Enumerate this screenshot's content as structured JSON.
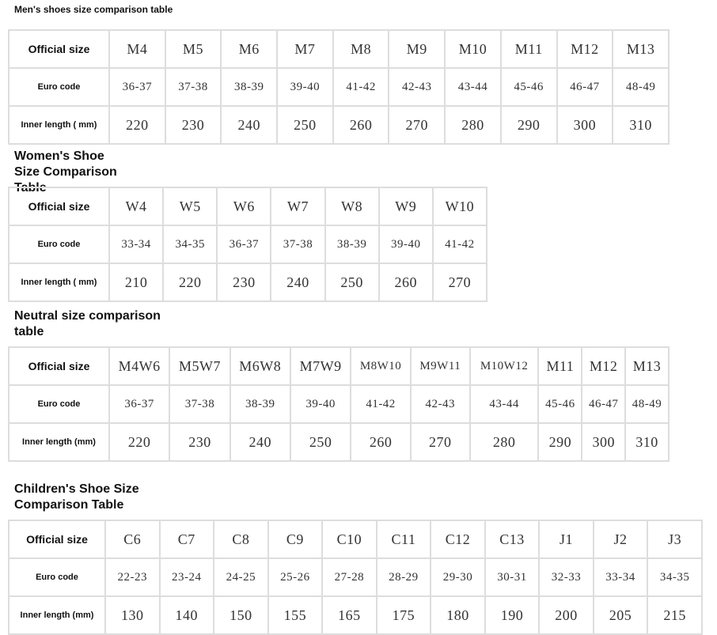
{
  "tables": [
    {
      "title": "Men's shoes size comparison table",
      "rows": [
        {
          "label": "Official size",
          "values": [
            "M4",
            "M5",
            "M6",
            "M7",
            "M8",
            "M9",
            "M10",
            "M11",
            "M12",
            "M13"
          ]
        },
        {
          "label": "Euro code",
          "values": [
            "36-37",
            "37-38",
            "38-39",
            "39-40",
            "41-42",
            "42-43",
            "43-44",
            "45-46",
            "46-47",
            "48-49"
          ]
        },
        {
          "label": "Inner length ( mm)",
          "values": [
            "220",
            "230",
            "240",
            "250",
            "260",
            "270",
            "280",
            "290",
            "300",
            "310"
          ]
        }
      ]
    },
    {
      "title": "Women's Shoe Size Comparison Table",
      "rows": [
        {
          "label": "Official size",
          "values": [
            "W4",
            "W5",
            "W6",
            "W7",
            "W8",
            "W9",
            "W10"
          ]
        },
        {
          "label": "Euro code",
          "values": [
            "33-34",
            "34-35",
            "36-37",
            "37-38",
            "38-39",
            "39-40",
            "41-42"
          ]
        },
        {
          "label": "Inner length ( mm)",
          "values": [
            "210",
            "220",
            "230",
            "240",
            "250",
            "260",
            "270"
          ]
        }
      ]
    },
    {
      "title": "Neutral size comparison table",
      "rows": [
        {
          "label": "Official size",
          "values": [
            "M4W6",
            "M5W7",
            "M6W8",
            "M7W9",
            "M8W10",
            "M9W11",
            "M10W12",
            "M11",
            "M12",
            "M13"
          ]
        },
        {
          "label": "Euro code",
          "values": [
            "36-37",
            "37-38",
            "38-39",
            "39-40",
            "41-42",
            "42-43",
            "43-44",
            "45-46",
            "46-47",
            "48-49"
          ]
        },
        {
          "label": "Inner length (mm)",
          "values": [
            "220",
            "230",
            "240",
            "250",
            "260",
            "270",
            "280",
            "290",
            "300",
            "310"
          ]
        }
      ]
    },
    {
      "title": "Children's Shoe Size Comparison Table",
      "rows": [
        {
          "label": "Official size",
          "values": [
            "C6",
            "C7",
            "C8",
            "C9",
            "C10",
            "C11",
            "C12",
            "C13",
            "J1",
            "J2",
            "J3"
          ]
        },
        {
          "label": "Euro code",
          "values": [
            "22-23",
            "23-24",
            "24-25",
            "25-26",
            "27-28",
            "28-29",
            "29-30",
            "30-31",
            "32-33",
            "33-34",
            "34-35"
          ]
        },
        {
          "label": "Inner length (mm)",
          "values": [
            "130",
            "140",
            "150",
            "155",
            "165",
            "175",
            "180",
            "190",
            "200",
            "205",
            "215"
          ]
        }
      ]
    }
  ]
}
